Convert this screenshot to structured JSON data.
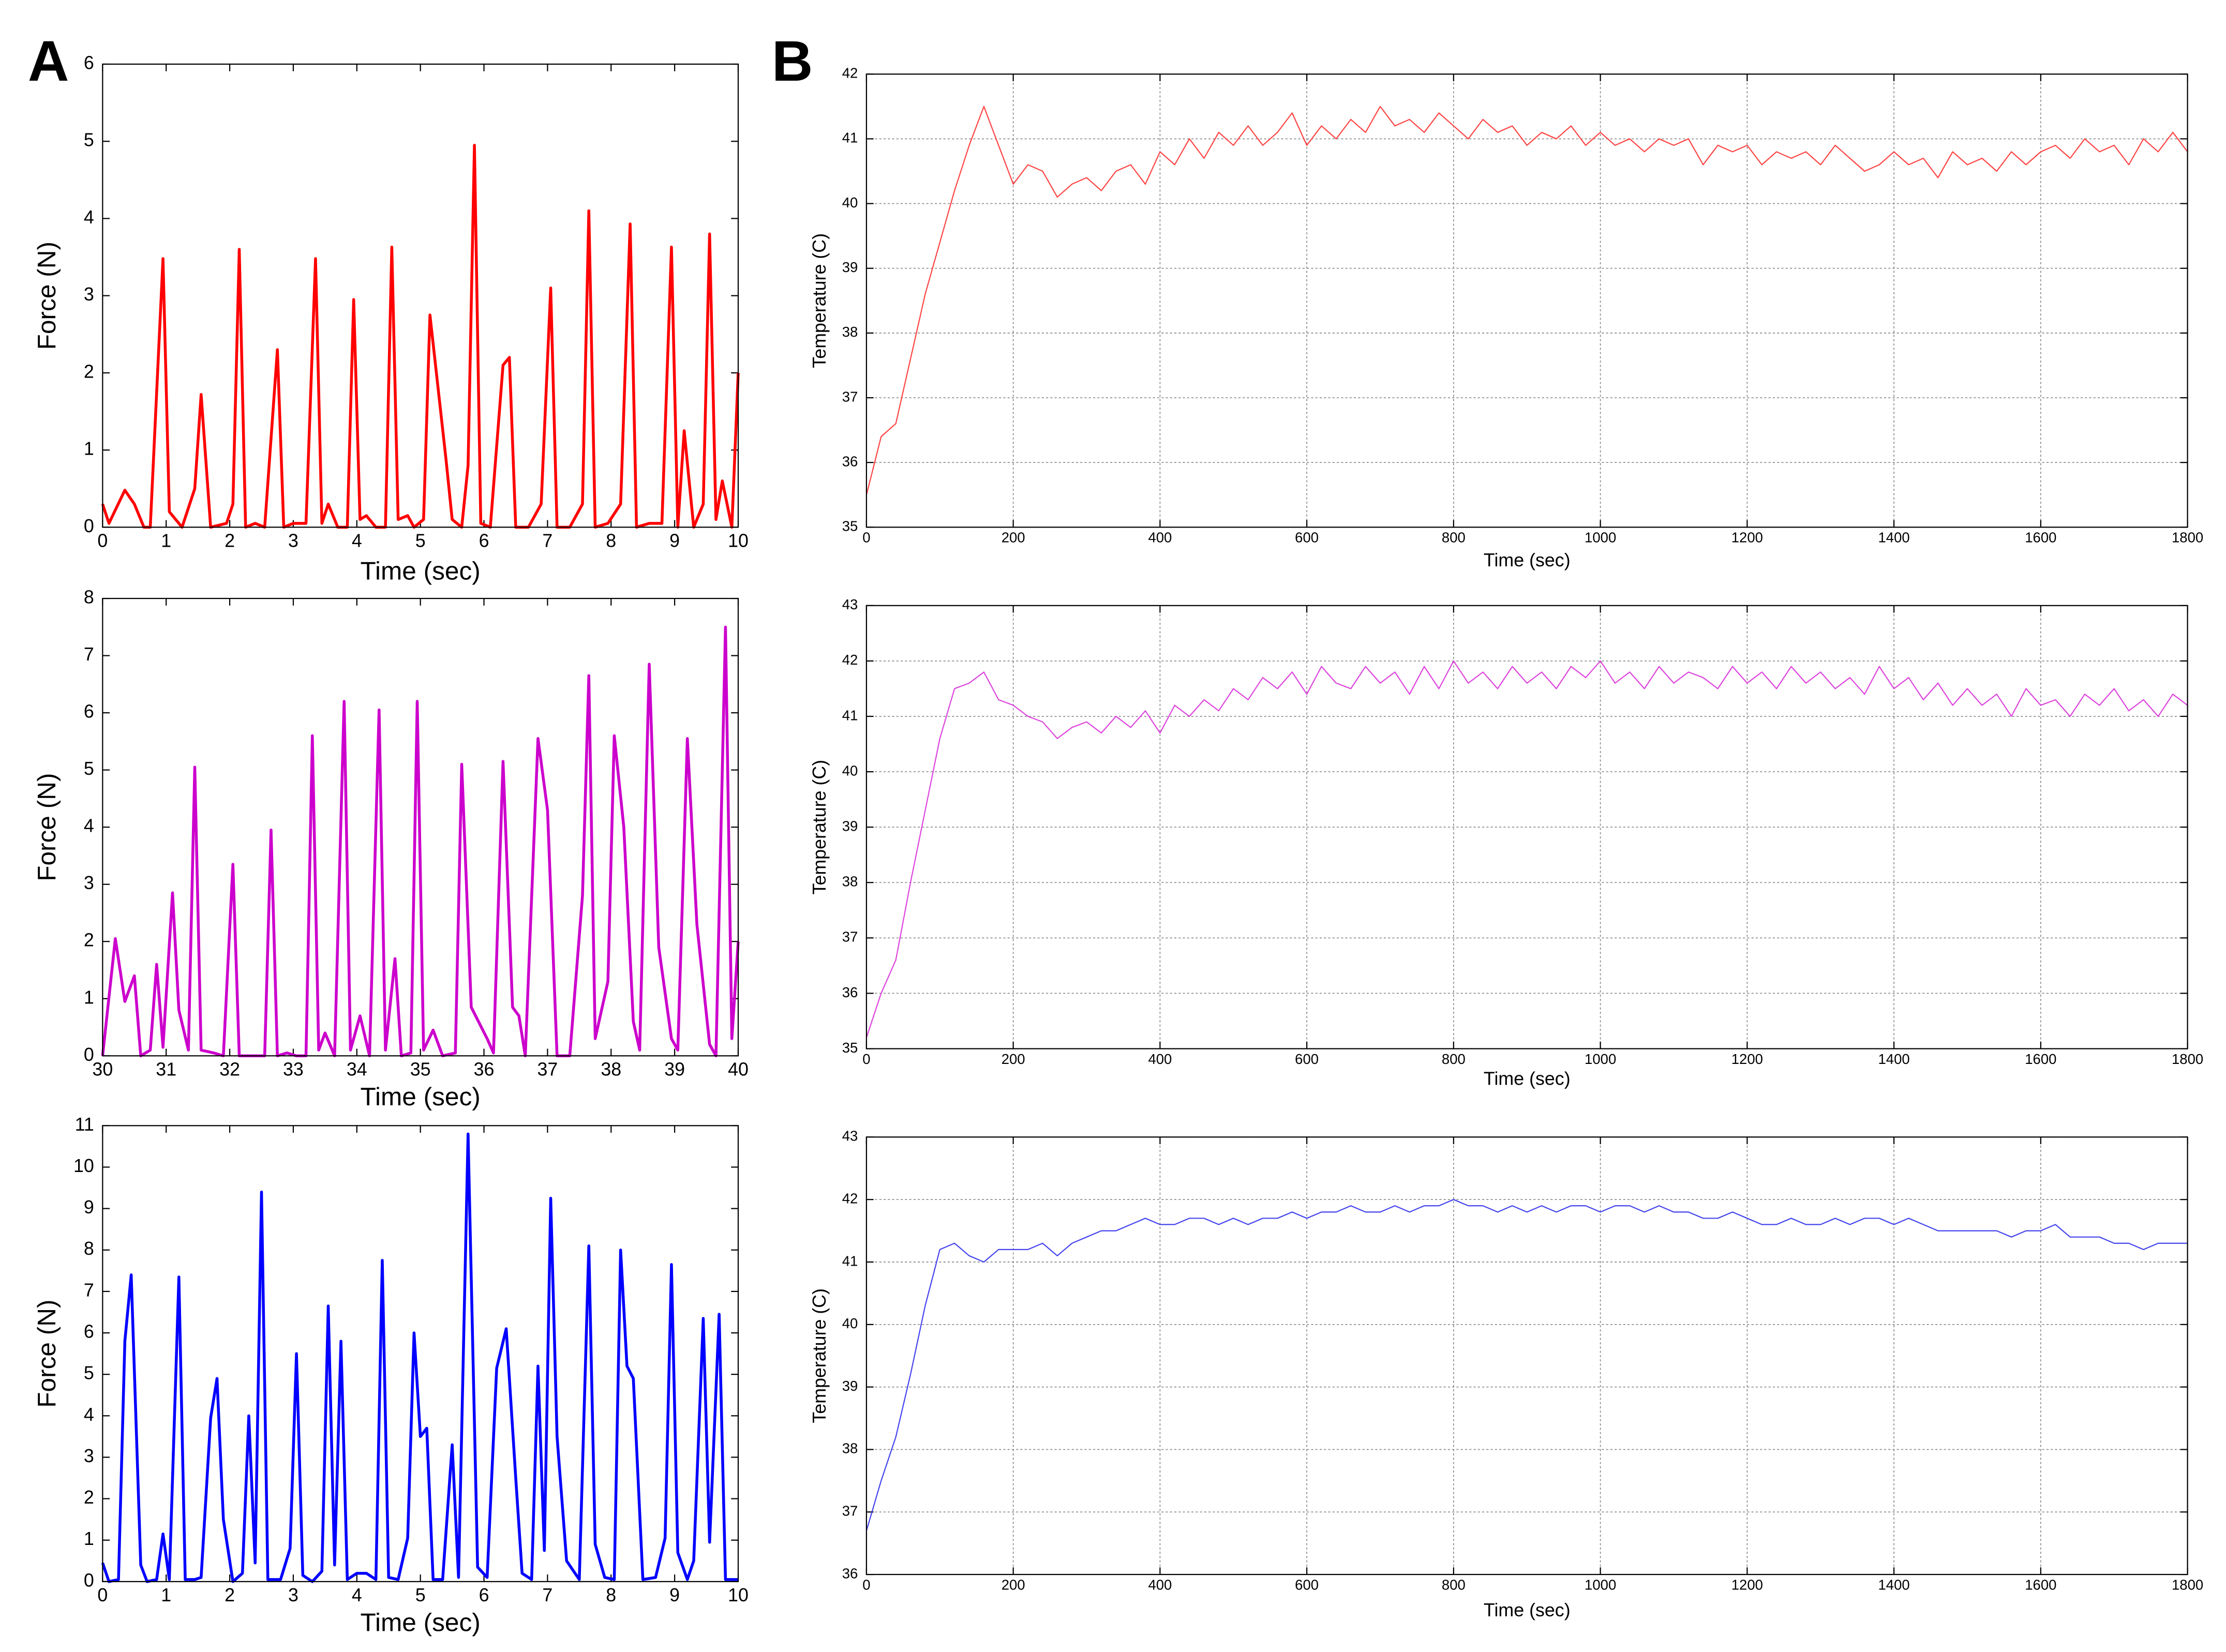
{
  "chart_data": [
    {
      "type": "line",
      "panel_label": "A",
      "xlabel": "Time (sec)",
      "ylabel": "Force (N)",
      "grid": false,
      "color": "#ff0000",
      "xlim": [
        0,
        10
      ],
      "ylim": [
        0,
        6
      ],
      "xticks": [
        0,
        1,
        2,
        3,
        4,
        5,
        6,
        7,
        8,
        9,
        10
      ],
      "yticks": [
        0,
        1,
        2,
        3,
        4,
        5,
        6
      ],
      "x": [
        0,
        0.1,
        0.35,
        0.5,
        0.65,
        0.75,
        0.95,
        1.05,
        1.25,
        1.45,
        1.55,
        1.7,
        1.95,
        2.05,
        2.15,
        2.25,
        2.4,
        2.55,
        2.75,
        2.85,
        3.0,
        3.2,
        3.35,
        3.45,
        3.55,
        3.7,
        3.85,
        3.95,
        4.05,
        4.15,
        4.3,
        4.45,
        4.55,
        4.65,
        4.8,
        4.9,
        5.05,
        5.15,
        5.4,
        5.5,
        5.65,
        5.75,
        5.85,
        5.95,
        6.1,
        6.3,
        6.4,
        6.5,
        6.7,
        6.9,
        7.05,
        7.15,
        7.35,
        7.55,
        7.65,
        7.75,
        7.95,
        8.15,
        8.3,
        8.4,
        8.6,
        8.8,
        8.95,
        9.05,
        9.15,
        9.3,
        9.45,
        9.55,
        9.65,
        9.75,
        9.9,
        10
      ],
      "values": [
        0.3,
        0.05,
        0.48,
        0.3,
        0,
        0,
        3.48,
        0.2,
        0,
        0.5,
        1.72,
        0,
        0.05,
        0.3,
        3.6,
        0,
        0.05,
        0,
        2.3,
        0,
        0.05,
        0.05,
        3.48,
        0.05,
        0.3,
        0,
        0,
        2.95,
        0.1,
        0.15,
        0,
        0,
        3.63,
        0.1,
        0.15,
        0,
        0.1,
        2.75,
        0.9,
        0.1,
        0,
        0.8,
        4.95,
        0.05,
        0,
        2.1,
        2.2,
        0,
        0,
        0.3,
        3.1,
        0,
        0,
        0.3,
        4.1,
        0,
        0.05,
        0.3,
        3.93,
        0,
        0.05,
        0.05,
        3.63,
        0,
        1.25,
        0,
        0.3,
        3.8,
        0.1,
        0.6,
        0,
        2.0
      ]
    },
    {
      "type": "line",
      "xlabel": "Time (sec)",
      "ylabel": "Force (N)",
      "grid": false,
      "color": "#cc00cc",
      "xlim": [
        30,
        40
      ],
      "ylim": [
        0,
        8
      ],
      "xticks": [
        30,
        31,
        32,
        33,
        34,
        35,
        36,
        37,
        38,
        39,
        40
      ],
      "yticks": [
        0,
        1,
        2,
        3,
        4,
        5,
        6,
        7,
        8
      ],
      "x": [
        30,
        30.2,
        30.35,
        30.5,
        30.6,
        30.75,
        30.85,
        30.95,
        31.1,
        31.2,
        31.35,
        31.45,
        31.55,
        31.75,
        31.9,
        32.05,
        32.15,
        32.4,
        32.55,
        32.65,
        32.75,
        32.9,
        33.05,
        33.2,
        33.3,
        33.4,
        33.5,
        33.65,
        33.8,
        33.9,
        34.05,
        34.2,
        34.35,
        34.45,
        34.6,
        34.7,
        34.85,
        34.95,
        35.05,
        35.2,
        35.35,
        35.55,
        35.65,
        35.8,
        36.05,
        36.15,
        36.3,
        36.45,
        36.55,
        36.65,
        36.85,
        37.0,
        37.15,
        37.35,
        37.55,
        37.65,
        37.75,
        37.95,
        38.05,
        38.2,
        38.35,
        38.45,
        38.6,
        38.75,
        38.95,
        39.05,
        39.2,
        39.35,
        39.55,
        39.65,
        39.8,
        39.9,
        40
      ],
      "values": [
        0,
        2.05,
        0.95,
        1.4,
        0,
        0.1,
        1.6,
        0.15,
        2.85,
        0.8,
        0.1,
        5.05,
        0.1,
        0.05,
        0,
        3.35,
        0,
        0,
        0,
        3.95,
        0,
        0.05,
        0,
        0,
        5.6,
        0.1,
        0.4,
        0,
        6.2,
        0.1,
        0.7,
        0,
        6.05,
        0.1,
        1.7,
        0,
        0.05,
        6.2,
        0.1,
        0.45,
        0,
        0.05,
        5.1,
        0.85,
        0.3,
        0.05,
        5.15,
        0.85,
        0.7,
        0,
        5.55,
        4.3,
        0,
        0,
        2.8,
        6.65,
        0.3,
        1.3,
        5.6,
        4.0,
        0.6,
        0.1,
        6.85,
        1.9,
        0.3,
        0.1,
        5.55,
        2.3,
        0.2,
        0,
        7.5,
        0.3,
        2.0
      ]
    },
    {
      "type": "line",
      "xlabel": "Time (sec)",
      "ylabel": "Force (N)",
      "grid": false,
      "color": "#0000ff",
      "xlim": [
        0,
        10
      ],
      "ylim": [
        0,
        11
      ],
      "xticks": [
        0,
        1,
        2,
        3,
        4,
        5,
        6,
        7,
        8,
        9,
        10
      ],
      "yticks": [
        0,
        1,
        2,
        3,
        4,
        5,
        6,
        7,
        8,
        9,
        10,
        11
      ],
      "x": [
        0,
        0.1,
        0.25,
        0.35,
        0.45,
        0.6,
        0.7,
        0.85,
        0.95,
        1.05,
        1.2,
        1.3,
        1.45,
        1.55,
        1.7,
        1.8,
        1.9,
        2.05,
        2.2,
        2.3,
        2.4,
        2.5,
        2.6,
        2.8,
        2.95,
        3.05,
        3.15,
        3.3,
        3.45,
        3.55,
        3.65,
        3.75,
        3.85,
        4.0,
        4.15,
        4.3,
        4.4,
        4.5,
        4.65,
        4.8,
        4.9,
        5.0,
        5.1,
        5.2,
        5.35,
        5.5,
        5.6,
        5.75,
        5.9,
        6.05,
        6.2,
        6.35,
        6.5,
        6.6,
        6.75,
        6.85,
        6.95,
        7.05,
        7.15,
        7.3,
        7.5,
        7.65,
        7.75,
        7.9,
        8.05,
        8.15,
        8.25,
        8.35,
        8.5,
        8.7,
        8.85,
        8.95,
        9.05,
        9.2,
        9.3,
        9.45,
        9.55,
        9.7,
        9.8,
        10
      ],
      "values": [
        0.45,
        0,
        0.05,
        5.8,
        7.4,
        0.4,
        0,
        0.05,
        1.15,
        0.05,
        7.35,
        0.05,
        0.05,
        0.1,
        3.95,
        4.9,
        1.5,
        0,
        0.2,
        4.0,
        0.45,
        9.4,
        0.05,
        0.05,
        0.8,
        5.5,
        0.15,
        0,
        0.25,
        6.65,
        0.4,
        5.8,
        0.05,
        0.2,
        0.2,
        0.05,
        7.75,
        0.1,
        0.05,
        1.05,
        6.0,
        3.5,
        3.7,
        0.05,
        0.05,
        3.3,
        0.1,
        10.8,
        0.35,
        0.1,
        5.15,
        6.1,
        2.5,
        0.2,
        0.05,
        5.2,
        0.75,
        9.25,
        3.5,
        0.5,
        0.05,
        8.1,
        0.9,
        0.1,
        0.05,
        8.0,
        5.2,
        4.9,
        0.05,
        0.1,
        1.05,
        7.65,
        0.7,
        0.05,
        0.5,
        6.35,
        0.95,
        6.45,
        0.05,
        0.05
      ]
    },
    {
      "type": "line",
      "panel_label": "B",
      "xlabel": "Time (sec)",
      "ylabel": "Temperature (C)",
      "grid": true,
      "color": "#ff4444",
      "xlim": [
        0,
        1800
      ],
      "ylim": [
        35,
        42
      ],
      "xticks": [
        0,
        200,
        400,
        600,
        800,
        1000,
        1200,
        1400,
        1600,
        1800
      ],
      "yticks": [
        35,
        36,
        37,
        38,
        39,
        40,
        41,
        42
      ],
      "x": [
        0,
        20,
        40,
        60,
        80,
        100,
        120,
        140,
        160,
        180,
        200,
        220,
        240,
        260,
        280,
        300,
        320,
        340,
        360,
        380,
        400,
        420,
        440,
        460,
        480,
        500,
        520,
        540,
        560,
        580,
        600,
        620,
        640,
        660,
        680,
        700,
        720,
        740,
        760,
        780,
        800,
        820,
        840,
        860,
        880,
        900,
        920,
        940,
        960,
        980,
        1000,
        1020,
        1040,
        1060,
        1080,
        1100,
        1120,
        1140,
        1160,
        1180,
        1200,
        1220,
        1240,
        1260,
        1280,
        1300,
        1320,
        1340,
        1360,
        1380,
        1400,
        1420,
        1440,
        1460,
        1480,
        1500,
        1520,
        1540,
        1560,
        1580,
        1600,
        1620,
        1640,
        1660,
        1680,
        1700,
        1720,
        1740,
        1760,
        1780,
        1800
      ],
      "values": [
        35.5,
        36.4,
        36.6,
        37.6,
        38.6,
        39.4,
        40.2,
        40.9,
        41.5,
        40.9,
        40.3,
        40.6,
        40.5,
        40.1,
        40.3,
        40.4,
        40.2,
        40.5,
        40.6,
        40.3,
        40.8,
        40.6,
        41.0,
        40.7,
        41.1,
        40.9,
        41.2,
        40.9,
        41.1,
        41.4,
        40.9,
        41.2,
        41.0,
        41.3,
        41.1,
        41.5,
        41.2,
        41.3,
        41.1,
        41.4,
        41.2,
        41.0,
        41.3,
        41.1,
        41.2,
        40.9,
        41.1,
        41.0,
        41.2,
        40.9,
        41.1,
        40.9,
        41.0,
        40.8,
        41.0,
        40.9,
        41.0,
        40.6,
        40.9,
        40.8,
        40.9,
        40.6,
        40.8,
        40.7,
        40.8,
        40.6,
        40.9,
        40.7,
        40.5,
        40.6,
        40.8,
        40.6,
        40.7,
        40.4,
        40.8,
        40.6,
        40.7,
        40.5,
        40.8,
        40.6,
        40.8,
        40.9,
        40.7,
        41.0,
        40.8,
        40.9,
        40.6,
        41.0,
        40.8,
        41.1,
        40.8
      ]
    },
    {
      "type": "line",
      "xlabel": "Time (sec)",
      "ylabel": "Temperature (C)",
      "grid": true,
      "color": "#dd44dd",
      "xlim": [
        0,
        1800
      ],
      "ylim": [
        35,
        43
      ],
      "xticks": [
        0,
        200,
        400,
        600,
        800,
        1000,
        1200,
        1400,
        1600,
        1800
      ],
      "yticks": [
        35,
        36,
        37,
        38,
        39,
        40,
        41,
        42,
        43
      ],
      "x": [
        0,
        20,
        40,
        60,
        80,
        100,
        120,
        140,
        160,
        180,
        200,
        220,
        240,
        260,
        280,
        300,
        320,
        340,
        360,
        380,
        400,
        420,
        440,
        460,
        480,
        500,
        520,
        540,
        560,
        580,
        600,
        620,
        640,
        660,
        680,
        700,
        720,
        740,
        760,
        780,
        800,
        820,
        840,
        860,
        880,
        900,
        920,
        940,
        960,
        980,
        1000,
        1020,
        1040,
        1060,
        1080,
        1100,
        1120,
        1140,
        1160,
        1180,
        1200,
        1220,
        1240,
        1260,
        1280,
        1300,
        1320,
        1340,
        1360,
        1380,
        1400,
        1420,
        1440,
        1460,
        1480,
        1500,
        1520,
        1540,
        1560,
        1580,
        1600,
        1620,
        1640,
        1660,
        1680,
        1700,
        1720,
        1740,
        1760,
        1780,
        1800
      ],
      "values": [
        35.2,
        36.0,
        36.6,
        38.0,
        39.3,
        40.6,
        41.5,
        41.6,
        41.8,
        41.3,
        41.2,
        41.0,
        40.9,
        40.6,
        40.8,
        40.9,
        40.7,
        41.0,
        40.8,
        41.1,
        40.7,
        41.2,
        41.0,
        41.3,
        41.1,
        41.5,
        41.3,
        41.7,
        41.5,
        41.8,
        41.4,
        41.9,
        41.6,
        41.5,
        41.9,
        41.6,
        41.8,
        41.4,
        41.9,
        41.5,
        42.0,
        41.6,
        41.8,
        41.5,
        41.9,
        41.6,
        41.8,
        41.5,
        41.9,
        41.7,
        42.0,
        41.6,
        41.8,
        41.5,
        41.9,
        41.6,
        41.8,
        41.7,
        41.5,
        41.9,
        41.6,
        41.8,
        41.5,
        41.9,
        41.6,
        41.8,
        41.5,
        41.7,
        41.4,
        41.9,
        41.5,
        41.7,
        41.3,
        41.6,
        41.2,
        41.5,
        41.2,
        41.4,
        41.0,
        41.5,
        41.2,
        41.3,
        41.0,
        41.4,
        41.2,
        41.5,
        41.1,
        41.3,
        41.0,
        41.4,
        41.2
      ]
    },
    {
      "type": "line",
      "xlabel": "Time (sec)",
      "ylabel": "Temperature (C)",
      "grid": true,
      "color": "#4444ee",
      "xlim": [
        0,
        1800
      ],
      "ylim": [
        36,
        43
      ],
      "xticks": [
        0,
        200,
        400,
        600,
        800,
        1000,
        1200,
        1400,
        1600,
        1800
      ],
      "yticks": [
        36,
        37,
        38,
        39,
        40,
        41,
        42,
        43
      ],
      "x": [
        0,
        20,
        40,
        60,
        80,
        100,
        120,
        140,
        160,
        180,
        200,
        220,
        240,
        260,
        280,
        300,
        320,
        340,
        360,
        380,
        400,
        420,
        440,
        460,
        480,
        500,
        520,
        540,
        560,
        580,
        600,
        620,
        640,
        660,
        680,
        700,
        720,
        740,
        760,
        780,
        800,
        820,
        840,
        860,
        880,
        900,
        920,
        940,
        960,
        980,
        1000,
        1020,
        1040,
        1060,
        1080,
        1100,
        1120,
        1140,
        1160,
        1180,
        1200,
        1220,
        1240,
        1260,
        1280,
        1300,
        1320,
        1340,
        1360,
        1380,
        1400,
        1420,
        1440,
        1460,
        1480,
        1500,
        1520,
        1540,
        1560,
        1580,
        1600,
        1620,
        1640,
        1660,
        1680,
        1700,
        1720,
        1740,
        1760,
        1780,
        1800
      ],
      "values": [
        36.7,
        37.5,
        38.2,
        39.2,
        40.3,
        41.2,
        41.3,
        41.1,
        41.0,
        41.2,
        41.2,
        41.2,
        41.3,
        41.1,
        41.3,
        41.4,
        41.5,
        41.5,
        41.6,
        41.7,
        41.6,
        41.6,
        41.7,
        41.7,
        41.6,
        41.7,
        41.6,
        41.7,
        41.7,
        41.8,
        41.7,
        41.8,
        41.8,
        41.9,
        41.8,
        41.8,
        41.9,
        41.8,
        41.9,
        41.9,
        42.0,
        41.9,
        41.9,
        41.8,
        41.9,
        41.8,
        41.9,
        41.8,
        41.9,
        41.9,
        41.8,
        41.9,
        41.9,
        41.8,
        41.9,
        41.8,
        41.8,
        41.7,
        41.7,
        41.8,
        41.7,
        41.6,
        41.6,
        41.7,
        41.6,
        41.6,
        41.7,
        41.6,
        41.7,
        41.7,
        41.6,
        41.7,
        41.6,
        41.5,
        41.5,
        41.5,
        41.5,
        41.5,
        41.4,
        41.5,
        41.5,
        41.6,
        41.4,
        41.4,
        41.4,
        41.3,
        41.3,
        41.2,
        41.3,
        41.3,
        41.3
      ]
    }
  ]
}
